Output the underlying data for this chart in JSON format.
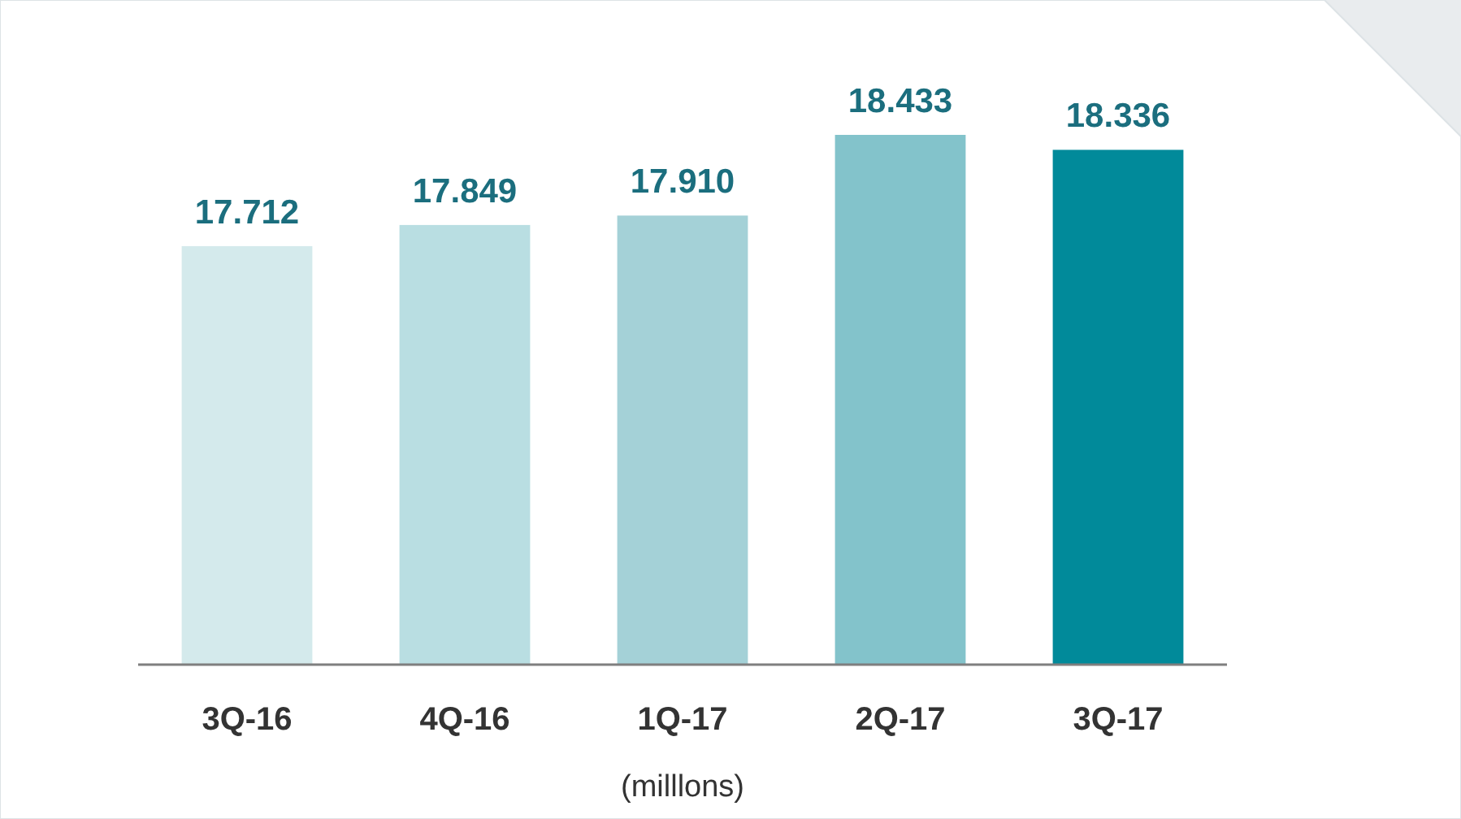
{
  "chart_data": {
    "type": "bar",
    "xlabel": "(milllons)",
    "categories": [
      "3Q-16",
      "4Q-16",
      "1Q-17",
      "2Q-17",
      "3Q-17"
    ],
    "values": [
      17.712,
      17.849,
      17.91,
      18.433,
      18.336
    ],
    "value_labels": [
      "17.712",
      "17.849",
      "17.910",
      "18.433",
      "18.336"
    ],
    "colors": [
      "#d4eaec",
      "#b9dee2",
      "#a4d1d7",
      "#83c3cb",
      "#018a9a"
    ],
    "ylim": [
      15,
      18.433
    ],
    "grid": false
  }
}
